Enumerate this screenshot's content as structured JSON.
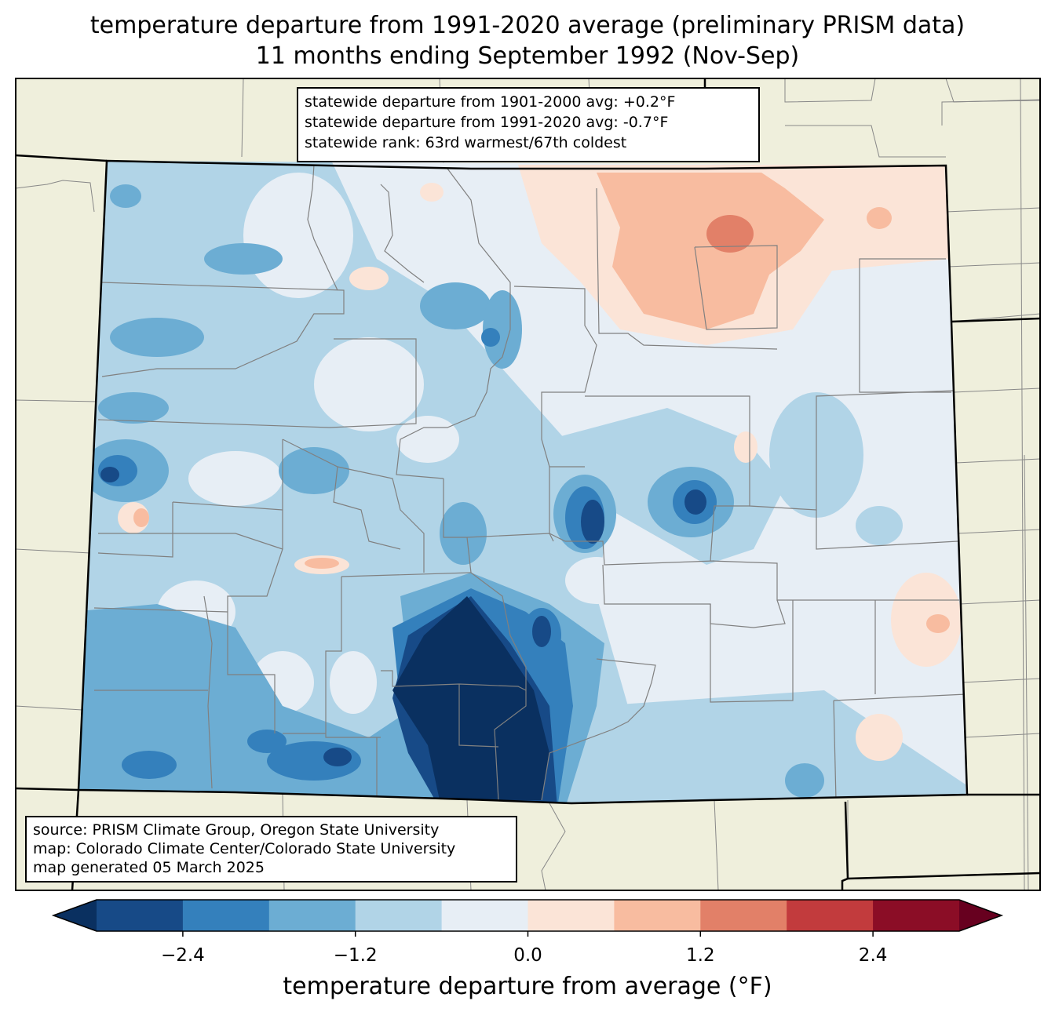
{
  "title": {
    "line1": "temperature departure from 1991-2020 average (preliminary PRISM data)",
    "line2": "11 months ending September 1992 (Nov-Sep)"
  },
  "stats": {
    "line1": "statewide departure from 1901-2000 avg: +0.2°F",
    "line2": "statewide departure from 1991-2020 avg: -0.7°F",
    "line3": "statewide rank: 63rd warmest/67th coldest"
  },
  "source": {
    "line1": "source: PRISM Climate Group, Oregon State University",
    "line2": "map: Colorado Climate Center/Colorado State University",
    "line3": "map generated 05 March 2025"
  },
  "colorbar": {
    "label": "temperature departure from average (°F)",
    "ticks": [
      "−2.4",
      "−1.2",
      "0.0",
      "1.2",
      "2.4"
    ],
    "tick_values": [
      -2.4,
      -1.2,
      0.0,
      1.2,
      2.4
    ],
    "bin_edges": [
      -3.0,
      -2.4,
      -1.8,
      -1.2,
      -0.6,
      0.0,
      0.6,
      1.2,
      1.8,
      2.4,
      3.0
    ],
    "colors": [
      "#0a3060",
      "#174a87",
      "#3480bc",
      "#6cadd3",
      "#b1d4e7",
      "#e7eef5",
      "#fbe4d7",
      "#f8bca0",
      "#e28068",
      "#c23b3d",
      "#8b0d26",
      "#67001f"
    ]
  },
  "colors": {
    "land": "#efefdc",
    "state_border": "#000000",
    "county_border": "#888888"
  }
}
